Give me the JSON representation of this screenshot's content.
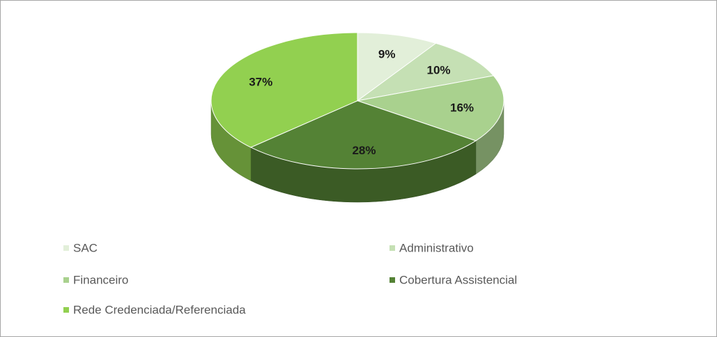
{
  "chart_data": {
    "type": "pie",
    "categories": [
      "SAC",
      "Administrativo",
      "Financeiro",
      "Cobertura Assistencial",
      "Rede Credenciada/Referenciada"
    ],
    "values": [
      9,
      10,
      16,
      28,
      37
    ],
    "value_labels": [
      "9%",
      "10%",
      "16%",
      "28%",
      "37%"
    ],
    "colors": [
      "#e2efd9",
      "#c5e0b4",
      "#a9d18e",
      "#548235",
      "#92d050"
    ],
    "legend": "bottom"
  }
}
